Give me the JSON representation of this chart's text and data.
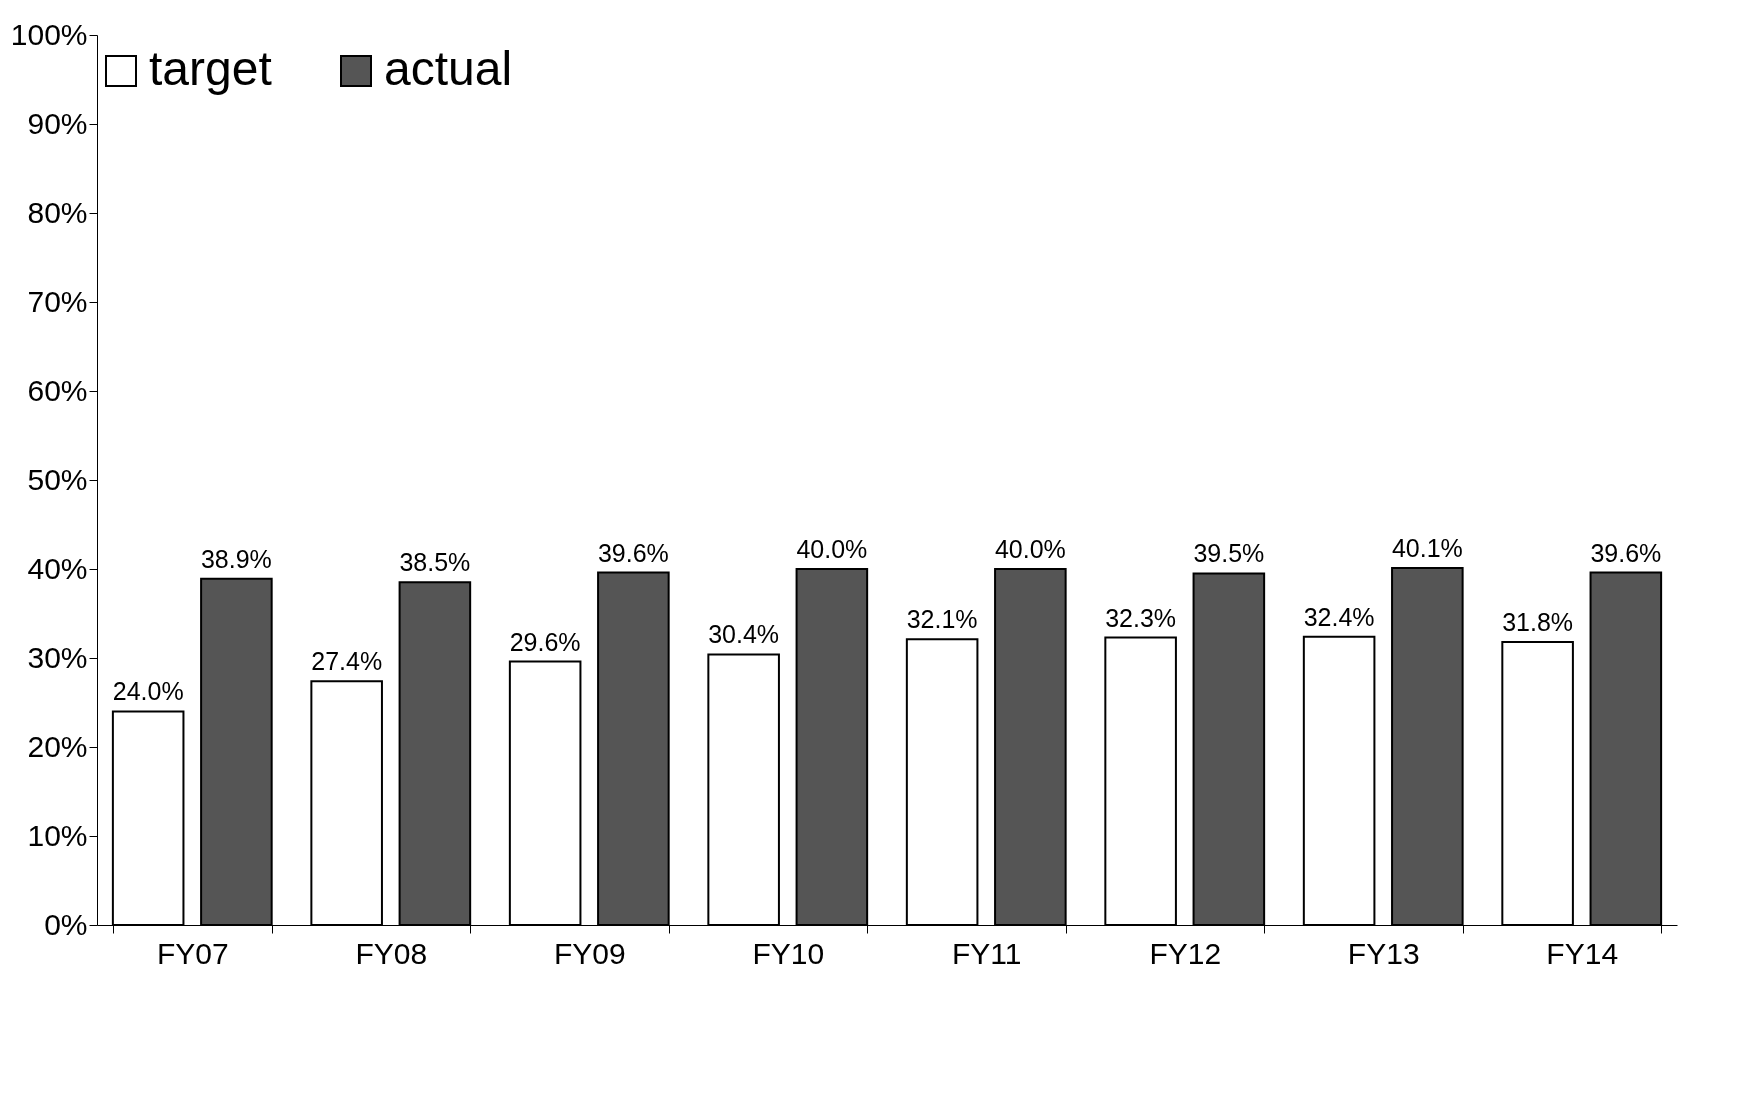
{
  "chart_data": {
    "type": "bar",
    "categories": [
      "FY07",
      "FY08",
      "FY09",
      "FY10",
      "FY11",
      "FY12",
      "FY13",
      "FY14"
    ],
    "series": [
      {
        "name": "target",
        "color": "#ffffff",
        "values": [
          24.0,
          27.4,
          29.6,
          30.4,
          32.1,
          32.3,
          32.4,
          31.8
        ],
        "value_labels": [
          "24.0%",
          "27.4%",
          "29.6%",
          "30.4%",
          "32.1%",
          "32.3%",
          "32.4%",
          "31.8%"
        ]
      },
      {
        "name": "actual",
        "color": "#555555",
        "values": [
          38.9,
          38.5,
          39.6,
          40.0,
          40.0,
          39.5,
          40.1,
          39.6
        ],
        "value_labels": [
          "38.9%",
          "38.5%",
          "39.6%",
          "40.0%",
          "40.0%",
          "39.5%",
          "40.1%",
          "39.6%"
        ]
      }
    ],
    "ylim": [
      0,
      100
    ],
    "yticks": [
      {
        "value": 0,
        "label": "0%"
      },
      {
        "value": 10,
        "label": "10%"
      },
      {
        "value": 20,
        "label": "20%"
      },
      {
        "value": 30,
        "label": "30%"
      },
      {
        "value": 40,
        "label": "40%"
      },
      {
        "value": 50,
        "label": "50%"
      },
      {
        "value": 60,
        "label": "60%"
      },
      {
        "value": 70,
        "label": "70%"
      },
      {
        "value": 80,
        "label": "80%"
      },
      {
        "value": 90,
        "label": "90%"
      },
      {
        "value": 100,
        "label": "100%"
      }
    ],
    "grid": false,
    "legend": "top"
  }
}
